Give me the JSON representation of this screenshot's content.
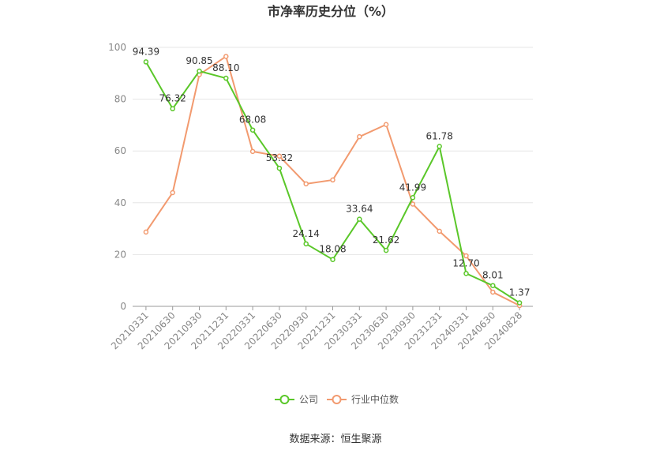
{
  "chart_data": {
    "type": "line",
    "title": "市净率历史分位（%）",
    "source": "数据来源：恒生聚源",
    "categories": [
      "20210331",
      "20210630",
      "20210930",
      "20211231",
      "20220331",
      "20220630",
      "20220930",
      "20221231",
      "20230331",
      "20230630",
      "20230930",
      "20231231",
      "20240331",
      "20240630",
      "20240828"
    ],
    "ylim": [
      0,
      100
    ],
    "yticks": [
      0,
      20,
      40,
      60,
      80,
      100
    ],
    "grid": true,
    "legend_position": "bottom",
    "series": [
      {
        "name": "公司",
        "color": "#5ac729",
        "values": [
          94.39,
          76.32,
          90.85,
          88.1,
          68.08,
          53.32,
          24.14,
          18.08,
          33.64,
          21.62,
          41.99,
          61.78,
          12.7,
          8.01,
          1.37
        ],
        "labels": [
          "94.39",
          "76.32",
          "90.85",
          "88.10",
          "68.08",
          "53.32",
          "24.14",
          "18.08",
          "33.64",
          "21.62",
          "41.99",
          "61.78",
          "12.70",
          "8.01",
          "1.37"
        ]
      },
      {
        "name": "行业中位数",
        "color": "#f29a6f",
        "values": [
          28.7,
          43.9,
          89.5,
          96.5,
          59.8,
          58.0,
          47.3,
          48.8,
          65.5,
          70.2,
          39.5,
          29.0,
          19.5,
          5.5,
          0.3
        ]
      }
    ]
  }
}
